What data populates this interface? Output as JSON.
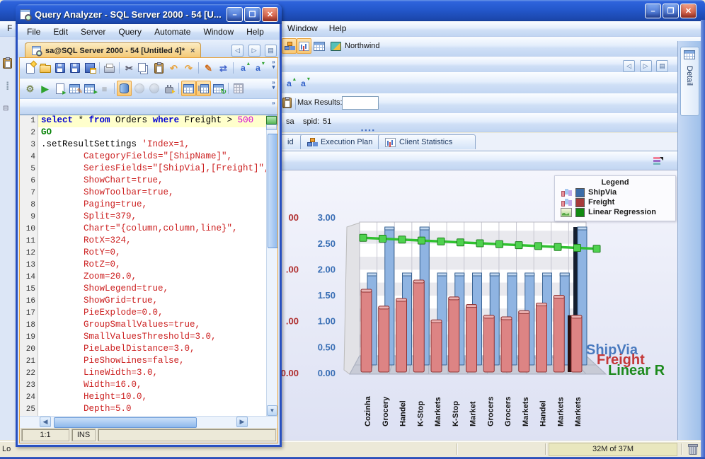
{
  "front_window": {
    "title": "Query Analyzer - SQL Server 2000 - 54 [U...",
    "menu": [
      "File",
      "Edit",
      "Server",
      "Query",
      "Automate",
      "Window",
      "Help"
    ],
    "tab": {
      "label": "sa@SQL Server 2000 - 54 [Untitled 4]*",
      "close_glyph": "×"
    },
    "toolbar_main": [
      {
        "name": "new-query-button",
        "kind": "page-new"
      },
      {
        "name": "open-file-button",
        "kind": "folder"
      },
      {
        "name": "save-button",
        "kind": "floppy"
      },
      {
        "name": "save-as-button",
        "kind": "floppy"
      },
      {
        "name": "save-all-button",
        "kind": "floppy-grid"
      },
      {
        "sep": true
      },
      {
        "name": "print-button",
        "kind": "printer"
      },
      {
        "sep": true
      },
      {
        "name": "cut-button",
        "glyph": "✂",
        "color": "#556"
      },
      {
        "name": "copy-button",
        "kind": "copy"
      },
      {
        "name": "paste-button",
        "kind": "paste"
      },
      {
        "name": "undo-button",
        "glyph": "↶",
        "color": "#E8A33D"
      },
      {
        "name": "redo-button",
        "glyph": "↷",
        "color": "#E8A33D"
      },
      {
        "sep": true
      },
      {
        "name": "format-pen-button",
        "glyph": "✎",
        "color": "#D07020"
      },
      {
        "name": "find-replace-button",
        "glyph": "⇄",
        "color": "#4466CC"
      },
      {
        "sep": true
      },
      {
        "name": "font-grow-button",
        "kind": "font-up"
      },
      {
        "name": "font-shrink-button",
        "kind": "font-down"
      }
    ],
    "toolbar_exec": [
      {
        "name": "parse-query-button",
        "glyph": "⚙",
        "color": "#7A8A55"
      },
      {
        "name": "execute-query-button",
        "glyph": "▶",
        "color": "#2FA32F"
      },
      {
        "name": "execute-to-file-button",
        "kind": "page-play"
      },
      {
        "name": "edit-grid-button",
        "kind": "grid-edit"
      },
      {
        "name": "export-grid-button",
        "kind": "grid-play"
      },
      {
        "name": "stop-query-button",
        "glyph": "■",
        "color": "#888",
        "disabled": true
      },
      {
        "sep": true
      },
      {
        "name": "refresh-database-button",
        "kind": "db",
        "toggled": true
      },
      {
        "name": "previous-result-button",
        "kind": "circle",
        "disabled": true
      },
      {
        "name": "next-result-button",
        "kind": "circle",
        "disabled": true
      },
      {
        "name": "disconnect-button",
        "kind": "plug"
      },
      {
        "sep": true
      },
      {
        "name": "show-results-grid-button",
        "kind": "grid",
        "toggled": true
      },
      {
        "name": "show-results-tree-button",
        "kind": "grid-tree",
        "toggled": true
      },
      {
        "name": "refresh-results-button",
        "kind": "grid-sync"
      },
      {
        "sep": true
      },
      {
        "name": "client-statistics-button",
        "kind": "calc"
      }
    ],
    "editor_lines": [
      {
        "n": 1,
        "hl": true,
        "segs": [
          [
            "select",
            "kw"
          ],
          [
            " * ",
            "pl"
          ],
          [
            "from",
            "kw"
          ],
          [
            " Orders ",
            "pl"
          ],
          [
            "where",
            "kw"
          ],
          [
            " Freight > ",
            "pl"
          ],
          [
            "500",
            "num"
          ]
        ]
      },
      {
        "n": 2,
        "segs": [
          [
            "GO",
            "go"
          ]
        ]
      },
      {
        "n": 3,
        "segs": [
          [
            ".setResultSettings ",
            "pl"
          ],
          [
            "'Index=1,",
            "str"
          ]
        ]
      },
      {
        "n": 4,
        "segs": [
          [
            "        CategoryFields=\"[ShipName]\",",
            "str"
          ]
        ]
      },
      {
        "n": 5,
        "segs": [
          [
            "        SeriesFields=\"[ShipVia],[Freight]\",",
            "str"
          ]
        ]
      },
      {
        "n": 6,
        "segs": [
          [
            "        ShowChart=true,",
            "str"
          ]
        ]
      },
      {
        "n": 7,
        "segs": [
          [
            "        ShowToolbar=true,",
            "str"
          ]
        ]
      },
      {
        "n": 8,
        "segs": [
          [
            "        Paging=true,",
            "str"
          ]
        ]
      },
      {
        "n": 9,
        "segs": [
          [
            "        Split=379,",
            "str"
          ]
        ]
      },
      {
        "n": 10,
        "segs": [
          [
            "        Chart=\"{column,column,line}\",",
            "str"
          ]
        ]
      },
      {
        "n": 11,
        "segs": [
          [
            "        RotX=324,",
            "str"
          ]
        ]
      },
      {
        "n": 12,
        "segs": [
          [
            "        RotY=0,",
            "str"
          ]
        ]
      },
      {
        "n": 13,
        "segs": [
          [
            "        RotZ=0,",
            "str"
          ]
        ]
      },
      {
        "n": 14,
        "segs": [
          [
            "        Zoom=20.0,",
            "str"
          ]
        ]
      },
      {
        "n": 15,
        "segs": [
          [
            "        ShowLegend=true,",
            "str"
          ]
        ]
      },
      {
        "n": 16,
        "segs": [
          [
            "        ShowGrid=true,",
            "str"
          ]
        ]
      },
      {
        "n": 17,
        "segs": [
          [
            "        PieExplode=0.0,",
            "str"
          ]
        ]
      },
      {
        "n": 18,
        "segs": [
          [
            "        GroupSmallValues=true,",
            "str"
          ]
        ]
      },
      {
        "n": 19,
        "segs": [
          [
            "        SmallValuesThreshold=3.0,",
            "str"
          ]
        ]
      },
      {
        "n": 20,
        "segs": [
          [
            "        PieLabelDistance=3.0,",
            "str"
          ]
        ]
      },
      {
        "n": 21,
        "segs": [
          [
            "        PieShowLines=false,",
            "str"
          ]
        ]
      },
      {
        "n": 22,
        "segs": [
          [
            "        LineWidth=3.0,",
            "str"
          ]
        ]
      },
      {
        "n": 23,
        "segs": [
          [
            "        Width=16.0,",
            "str"
          ]
        ]
      },
      {
        "n": 24,
        "segs": [
          [
            "        Height=10.0,",
            "str"
          ]
        ]
      },
      {
        "n": 25,
        "segs": [
          [
            "        Depth=5.0",
            "str"
          ]
        ]
      }
    ],
    "statusbar": {
      "position": "1:1",
      "mode": "INS"
    }
  },
  "back_window": {
    "menu": [
      "Window",
      "Help"
    ],
    "menu_fragment": "F",
    "toolbar": [
      {
        "name": "show-plan-toggle",
        "kind": "diagram",
        "toggled": true
      },
      {
        "name": "show-chart-toggle",
        "kind": "chart",
        "toggled": true
      },
      {
        "name": "show-table-toggle",
        "kind": "table"
      },
      {
        "name": "database-selector",
        "kind": "book",
        "label": "Northwind"
      }
    ],
    "max_results_label": "Max Results:",
    "max_results_value": "",
    "connection": {
      "user": "sa",
      "spid_label": "spid:",
      "spid": "51"
    },
    "result_tabs": [
      {
        "label": "id",
        "kind": "",
        "partial": true
      },
      {
        "label": "Execution Plan",
        "kind": "diagram"
      },
      {
        "label": "Client Statistics",
        "kind": "chart"
      }
    ],
    "detail_tab_label": "Detail",
    "statusbar": {
      "left_fragment": "Lo",
      "memory": "32M of 37M"
    }
  },
  "chart_data": {
    "type": [
      "column",
      "column",
      "line"
    ],
    "title": "",
    "categories": [
      "Cozinha",
      "Grocery",
      "Handel",
      "K-Stop",
      "Markets",
      "K-Stop",
      "Market",
      "Grocers",
      "Grocers",
      "Markets",
      "Handel",
      "Markets",
      "Markets"
    ],
    "series": [
      {
        "name": "ShipVia",
        "type": "column",
        "color": "#8FB4E2",
        "edge": "#3A6494",
        "values": [
          2,
          3,
          2,
          3,
          2,
          2,
          2,
          2,
          2,
          2,
          2,
          2,
          3
        ]
      },
      {
        "name": "Freight",
        "type": "column",
        "color": "#DD8484",
        "edge": "#8F3434",
        "values": [
          540,
          430,
          480,
          600,
          340,
          490,
          440,
          370,
          360,
          400,
          450,
          500,
          370
        ]
      },
      {
        "name": "Linear Regression",
        "type": "line",
        "color": "#2FC12F",
        "edge": "#1F7F1F",
        "values": [
          2.72,
          2.7,
          2.68,
          2.66,
          2.64,
          2.62,
          2.6,
          2.58,
          2.56,
          2.54,
          2.52,
          2.5,
          2.48
        ]
      }
    ],
    "primary_axis": {
      "ticks": [
        "3.00",
        "2.50",
        "2.00",
        "1.50",
        "1.00",
        "0.50",
        "0.00"
      ],
      "values": [
        3,
        2.5,
        2,
        1.5,
        1,
        0.5,
        0
      ],
      "color": "#3A6FB5",
      "range": [
        0,
        3
      ]
    },
    "secondary_axis": {
      "visible_tick_fragments": [
        "00",
        ".00",
        ".00",
        "0.00"
      ],
      "values": [
        3,
        2,
        1,
        0
      ],
      "color": "#B03030",
      "range_estimate": [
        0,
        900
      ]
    },
    "legend": {
      "title": "Legend",
      "entries": [
        {
          "label": "ShipVia",
          "swatch": "#3B6CA8",
          "icon": "mini-cols"
        },
        {
          "label": "Freight",
          "swatch": "#A63A3A",
          "icon": "mini-cols"
        },
        {
          "label": "Linear Regression",
          "swatch": "#118A11",
          "icon": "mini-area"
        }
      ],
      "position": "top-right"
    },
    "series_axis_labels": [
      {
        "text": "ShipVia",
        "color": "#4A7ABF"
      },
      {
        "text": "Freight",
        "color": "#C43838"
      },
      {
        "text": "Linear R",
        "color": "#1D8A1D"
      }
    ],
    "grid": true
  }
}
